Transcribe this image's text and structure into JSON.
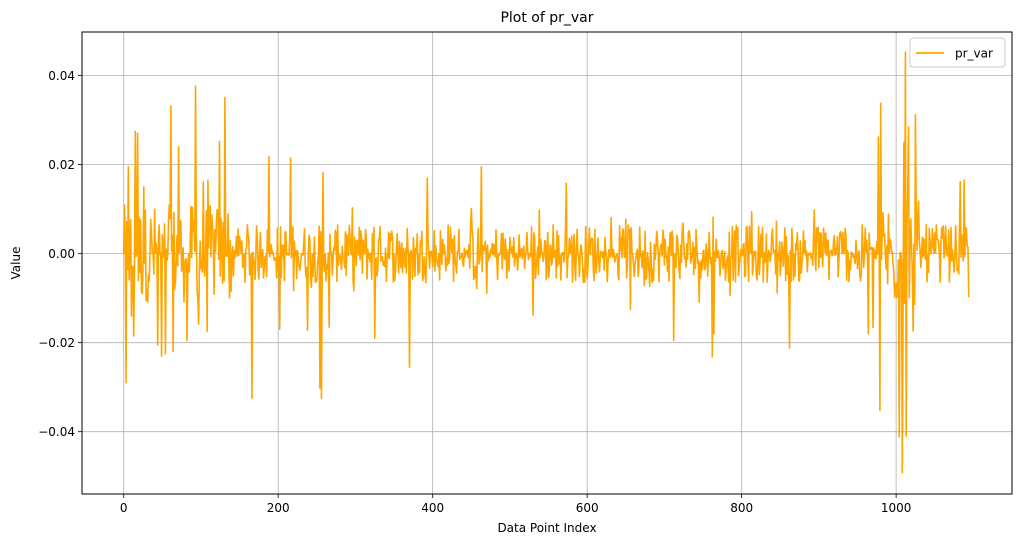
{
  "chart_data": {
    "type": "line",
    "title": "Plot of pr_var",
    "xlabel": "Data Point Index",
    "ylabel": "Value",
    "xlim": [
      -54,
      1150
    ],
    "ylim": [
      -0.054,
      0.0498
    ],
    "x_ticks": [
      0,
      200,
      400,
      600,
      800,
      1000
    ],
    "x_tick_labels": [
      "0",
      "200",
      "400",
      "600",
      "800",
      "1000"
    ],
    "y_ticks": [
      -0.04,
      -0.02,
      0.0,
      0.02,
      0.04
    ],
    "y_tick_labels": [
      "−0.04",
      "−0.02",
      "0.00",
      "0.02",
      "0.04"
    ],
    "grid": true,
    "legend": {
      "position": "upper right",
      "entries": [
        "pr_var"
      ]
    },
    "series": [
      {
        "name": "pr_var",
        "color": "#ffa500",
        "n_points": 1095,
        "x_range": [
          0,
          1094
        ],
        "y_min_approx": -0.0492,
        "y_max_approx": 0.0453,
        "notable_points": [
          {
            "x": 0,
            "y": 0.0
          },
          {
            "x": 3,
            "y": -0.029
          },
          {
            "x": 6,
            "y": 0.0195
          },
          {
            "x": 10,
            "y": -0.014
          },
          {
            "x": 13,
            "y": -0.0185
          },
          {
            "x": 15,
            "y": 0.0275
          },
          {
            "x": 18,
            "y": 0.027
          },
          {
            "x": 26,
            "y": 0.015
          },
          {
            "x": 44,
            "y": -0.0205
          },
          {
            "x": 49,
            "y": -0.023
          },
          {
            "x": 54,
            "y": -0.0225
          },
          {
            "x": 61,
            "y": 0.0332
          },
          {
            "x": 64,
            "y": -0.022
          },
          {
            "x": 71,
            "y": 0.024
          },
          {
            "x": 82,
            "y": -0.0195
          },
          {
            "x": 93,
            "y": 0.0377
          },
          {
            "x": 97,
            "y": -0.0158
          },
          {
            "x": 109,
            "y": 0.0165
          },
          {
            "x": 124,
            "y": 0.0252
          },
          {
            "x": 131,
            "y": 0.0351
          },
          {
            "x": 137,
            "y": -0.01
          },
          {
            "x": 166,
            "y": -0.0325
          },
          {
            "x": 188,
            "y": 0.0218
          },
          {
            "x": 202,
            "y": -0.017
          },
          {
            "x": 216,
            "y": 0.0215
          },
          {
            "x": 238,
            "y": -0.0172
          },
          {
            "x": 254,
            "y": -0.0302
          },
          {
            "x": 256,
            "y": -0.0325
          },
          {
            "x": 258,
            "y": 0.0182
          },
          {
            "x": 266,
            "y": -0.0165
          },
          {
            "x": 325,
            "y": -0.019
          },
          {
            "x": 370,
            "y": -0.0255
          },
          {
            "x": 393,
            "y": 0.017
          },
          {
            "x": 463,
            "y": 0.0195
          },
          {
            "x": 530,
            "y": -0.0138
          },
          {
            "x": 573,
            "y": 0.0158
          },
          {
            "x": 656,
            "y": -0.0125
          },
          {
            "x": 712,
            "y": -0.0195
          },
          {
            "x": 762,
            "y": -0.0232
          },
          {
            "x": 764,
            "y": -0.018
          },
          {
            "x": 862,
            "y": -0.0212
          },
          {
            "x": 964,
            "y": -0.018
          },
          {
            "x": 977,
            "y": 0.0262
          },
          {
            "x": 979,
            "y": -0.0352
          },
          {
            "x": 980,
            "y": 0.0338
          },
          {
            "x": 1004,
            "y": -0.0412
          },
          {
            "x": 1008,
            "y": -0.0492
          },
          {
            "x": 1010,
            "y": 0.025
          },
          {
            "x": 1012,
            "y": 0.0453
          },
          {
            "x": 1013,
            "y": -0.041
          },
          {
            "x": 1016,
            "y": 0.0285
          },
          {
            "x": 1025,
            "y": 0.0312
          },
          {
            "x": 1083,
            "y": 0.0162
          },
          {
            "x": 1088,
            "y": 0.0165
          },
          {
            "x": 1094,
            "y": -0.0098
          }
        ]
      }
    ]
  },
  "figure": {
    "background": "#ffffff",
    "grid_color": "#b0b0b0",
    "axes_color": "#000000",
    "legend_border_color": "#cccccc"
  }
}
